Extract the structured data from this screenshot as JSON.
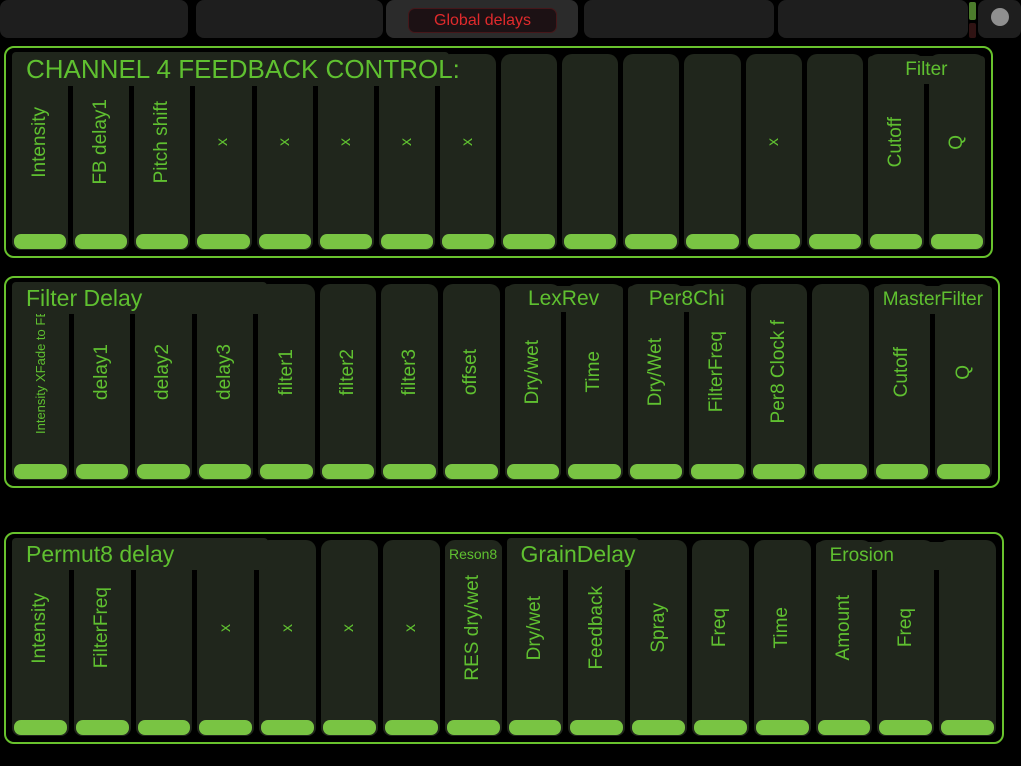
{
  "topbar": {
    "global_button_label": "Global delays",
    "tabs": [
      {
        "label": ""
      },
      {
        "label": ""
      },
      {
        "label": "",
        "selected": true
      },
      {
        "label": ""
      },
      {
        "label": ""
      }
    ]
  },
  "colors": {
    "accent_green": "#68c22d",
    "text_green": "#5fc030",
    "handle_green": "#79c443",
    "alert_red": "#e02a2c",
    "indicator_green": "#4c7c2c",
    "indicator_dark_red": "#301313",
    "circle_gray": "#8f8f8f",
    "fader_body": "#20261c"
  },
  "panels": [
    {
      "id": "channel4-feedback",
      "headers": [
        {
          "text": "CHANNEL 4 FEEDBACK CONTROL:",
          "kind": "title-large",
          "align": "left",
          "span": [
            0,
            6
          ]
        },
        {
          "text": "Filter",
          "kind": "group-medium",
          "align": "center",
          "span": [
            14,
            15
          ]
        }
      ],
      "faders": [
        {
          "label": "Intensity"
        },
        {
          "label": "FB delay1"
        },
        {
          "label": "Pitch shift"
        },
        {
          "label": "x"
        },
        {
          "label": "x"
        },
        {
          "label": "x"
        },
        {
          "label": "x"
        },
        {
          "label": "x"
        },
        {
          "label": ""
        },
        {
          "label": ""
        },
        {
          "label": ""
        },
        {
          "label": ""
        },
        {
          "label": "x"
        },
        {
          "label": ""
        },
        {
          "label": "Cutoff"
        },
        {
          "label": "Q"
        }
      ]
    },
    {
      "id": "filter-delay",
      "headers": [
        {
          "text": "Filter Delay",
          "kind": "title",
          "align": "left",
          "span": [
            0,
            3
          ]
        },
        {
          "text": "LexRev",
          "kind": "group",
          "align": "center",
          "span": [
            8,
            9
          ]
        },
        {
          "text": "Per8Chi",
          "kind": "group",
          "align": "center",
          "span": [
            10,
            11
          ]
        },
        {
          "text": "MasterFilter",
          "kind": "group-medium",
          "align": "center",
          "span": [
            14,
            15
          ]
        }
      ],
      "faders": [
        {
          "label": "Intensity XFade to FB",
          "small": true
        },
        {
          "label": "delay1"
        },
        {
          "label": "delay2"
        },
        {
          "label": "delay3"
        },
        {
          "label": "filter1"
        },
        {
          "label": "filter2"
        },
        {
          "label": "filter3"
        },
        {
          "label": "offset"
        },
        {
          "label": "Dry/wet"
        },
        {
          "label": "Time"
        },
        {
          "label": "Dry/Wet"
        },
        {
          "label": "FilterFreq"
        },
        {
          "label": "Per8 Clock f"
        },
        {
          "label": ""
        },
        {
          "label": "Cutoff"
        },
        {
          "label": "Q"
        }
      ]
    },
    {
      "id": "permut8-delay",
      "headers": [
        {
          "text": "Permut8 delay",
          "kind": "title",
          "align": "left",
          "span": [
            0,
            3
          ]
        },
        {
          "text": "Reson8",
          "kind": "group-small",
          "align": "center",
          "span": [
            7,
            7
          ]
        },
        {
          "text": "GrainDelay",
          "kind": "title",
          "align": "left",
          "span": [
            8,
            9
          ]
        },
        {
          "text": "Erosion",
          "kind": "group-medium",
          "align": "left",
          "span": [
            13,
            14
          ]
        }
      ],
      "faders": [
        {
          "label": "Intensity"
        },
        {
          "label": "FilterFreq"
        },
        {
          "label": ""
        },
        {
          "label": "x"
        },
        {
          "label": "x"
        },
        {
          "label": "x"
        },
        {
          "label": "x"
        },
        {
          "label": "RES dry/wet"
        },
        {
          "label": "Dry/wet"
        },
        {
          "label": "Feedback"
        },
        {
          "label": "Spray"
        },
        {
          "label": "Freq"
        },
        {
          "label": "Time"
        },
        {
          "label": "Amount"
        },
        {
          "label": "Freq"
        },
        {
          "label": ""
        }
      ]
    }
  ]
}
